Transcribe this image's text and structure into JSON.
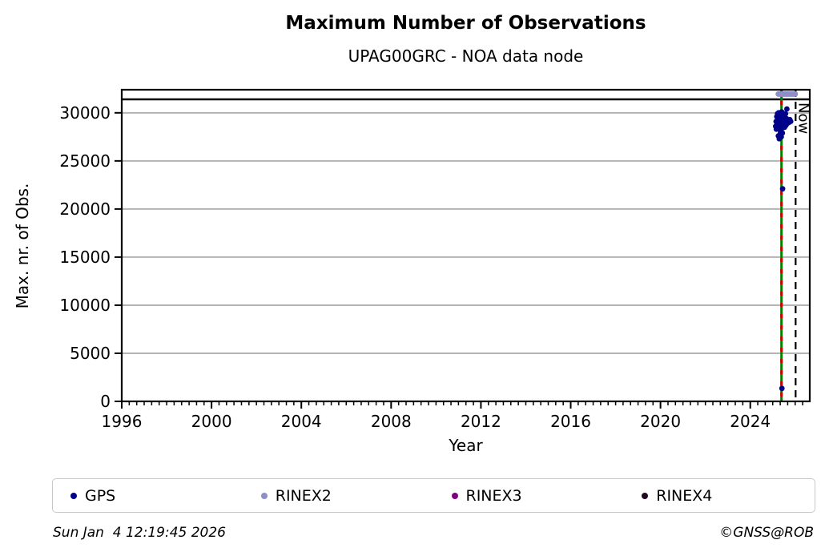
{
  "header": {
    "title": "Maximum Number of Observations",
    "subtitle": "UPAG00GRC - NOA data node"
  },
  "footer": {
    "timestamp": "Sun Jan  4 12:19:45 2026",
    "credit": "©GNSS@ROB"
  },
  "legend": {
    "items": [
      {
        "label": "GPS",
        "color": "#00008b"
      },
      {
        "label": "RINEX2",
        "color": "#8f8fc7"
      },
      {
        "label": "RINEX3",
        "color": "#800080"
      },
      {
        "label": "RINEX4",
        "color": "#220a22"
      }
    ]
  },
  "chart_data": {
    "type": "scatter",
    "title": "Maximum Number of Observations",
    "subtitle": "UPAG00GRC - NOA data node",
    "xlabel": "Year",
    "ylabel": "Max. nr. of Obs.",
    "xlim": [
      1996,
      2026.65
    ],
    "ylim": [
      0,
      32400
    ],
    "xticks": [
      1996,
      2000,
      2004,
      2008,
      2012,
      2016,
      2020,
      2024
    ],
    "x_minor_step": 0.333333,
    "yticks": [
      0,
      5000,
      10000,
      15000,
      20000,
      25000,
      30000
    ],
    "grid": "horizontal",
    "grid_color": "#b3b3b3",
    "reference_line": {
      "value": 31400,
      "color": "#000000"
    },
    "event_line": {
      "x": 2025.39,
      "solid_color": "#007f00",
      "dash_color": "#cc0000"
    },
    "now_line": {
      "x": 2026.02,
      "label": "Now",
      "color": "#000000"
    },
    "series": [
      {
        "name": "GPS",
        "color": "#00008b",
        "marker": "dot",
        "points": [
          [
            2025.13,
            28600
          ],
          [
            2025.15,
            29100
          ],
          [
            2025.16,
            28300
          ],
          [
            2025.18,
            29600
          ],
          [
            2025.19,
            28900
          ],
          [
            2025.21,
            29900
          ],
          [
            2025.22,
            28500
          ],
          [
            2025.24,
            29300
          ],
          [
            2025.25,
            27600
          ],
          [
            2025.26,
            30000
          ],
          [
            2025.28,
            28800
          ],
          [
            2025.29,
            27300
          ],
          [
            2025.31,
            29500
          ],
          [
            2025.32,
            28200
          ],
          [
            2025.33,
            27800
          ],
          [
            2025.35,
            29800
          ],
          [
            2025.36,
            28600
          ],
          [
            2025.38,
            27500
          ],
          [
            2025.39,
            29200
          ],
          [
            2025.4,
            30100
          ],
          [
            2025.42,
            28400
          ],
          [
            2025.43,
            27900
          ],
          [
            2025.45,
            29700
          ],
          [
            2025.46,
            28700
          ],
          [
            2025.48,
            29400
          ],
          [
            2025.5,
            28900
          ],
          [
            2025.52,
            29800
          ],
          [
            2025.53,
            28500
          ],
          [
            2025.55,
            29100
          ],
          [
            2025.57,
            29900
          ],
          [
            2025.59,
            28700
          ],
          [
            2025.61,
            29400
          ],
          [
            2025.63,
            30400
          ],
          [
            2025.65,
            28900
          ],
          [
            2025.68,
            29200
          ],
          [
            2025.72,
            29000
          ],
          [
            2025.76,
            29300
          ],
          [
            2025.8,
            29100
          ],
          [
            2025.44,
            22100
          ],
          [
            2025.41,
            1350
          ]
        ]
      },
      {
        "name": "RINEX2",
        "color": "#8f8fc7",
        "marker": "dot",
        "segment": {
          "x1": 2025.25,
          "x2": 2026.0,
          "y": 31950,
          "stroke_width": 7
        },
        "points": []
      },
      {
        "name": "RINEX3",
        "color": "#800080",
        "marker": "dot",
        "points": []
      },
      {
        "name": "RINEX4",
        "color": "#220a22",
        "marker": "dot",
        "points": []
      }
    ]
  }
}
